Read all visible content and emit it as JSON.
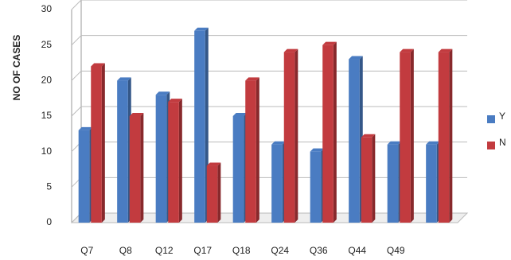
{
  "chart_data": {
    "type": "bar",
    "y_label": "NO OF CASES",
    "categories": [
      "Q7",
      "Q8",
      "Q12",
      "Q17",
      "Q18",
      "Q24",
      "Q36",
      "Q44",
      "Q49",
      null
    ],
    "series": [
      {
        "name": "Y",
        "color": "#4a7cc2",
        "values": [
          13,
          20,
          18,
          27,
          15,
          11,
          10,
          23,
          11,
          11
        ]
      },
      {
        "name": "N",
        "color": "#c23b3f",
        "values": [
          22,
          15,
          17,
          8,
          20,
          24,
          25,
          12,
          24,
          24
        ]
      }
    ],
    "ylim": [
      0,
      30
    ],
    "yticks": [
      0,
      5,
      10,
      15,
      20,
      25,
      30
    ],
    "grid": true
  }
}
